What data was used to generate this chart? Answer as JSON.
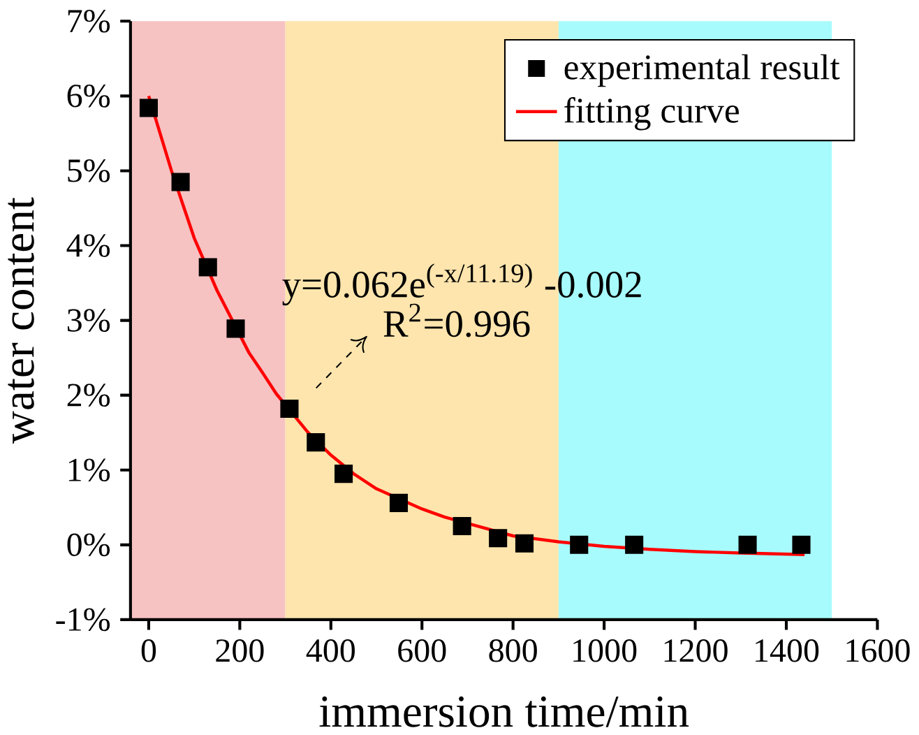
{
  "chart_data": {
    "type": "scatter",
    "xlabel": "immersion time/min",
    "ylabel": "water content",
    "xlim": [
      -40,
      1600
    ],
    "xticks": [
      0,
      200,
      400,
      600,
      800,
      1000,
      1200,
      1400,
      1600
    ],
    "ylim": [
      -1,
      7
    ],
    "yticks": [
      {
        "value": -1,
        "label": "-1%"
      },
      {
        "value": 0,
        "label": "0%"
      },
      {
        "value": 1,
        "label": "1%"
      },
      {
        "value": 2,
        "label": "2%"
      },
      {
        "value": 3,
        "label": "3%"
      },
      {
        "value": 4,
        "label": "4%"
      },
      {
        "value": 5,
        "label": "5%"
      },
      {
        "value": 6,
        "label": "6%"
      },
      {
        "value": 7,
        "label": "7%"
      }
    ],
    "x": [
      0,
      70,
      130,
      191,
      309,
      367,
      428,
      549,
      688,
      767,
      825,
      945,
      1066,
      1315,
      1433
    ],
    "series": [
      {
        "name": "experimental result",
        "color": "#000000",
        "marker": "square",
        "values": [
          5.84,
          4.85,
          3.71,
          2.89,
          1.82,
          1.37,
          0.95,
          0.56,
          0.25,
          0.09,
          0.02,
          0,
          0,
          0,
          0
        ]
      },
      {
        "name": "fitting curve",
        "type": "line",
        "color": "#ff0000",
        "marker": "none",
        "x": [
          0,
          50,
          100,
          150,
          220,
          250,
          280,
          350,
          400,
          450,
          500,
          600,
          650,
          800,
          900,
          1000,
          1100,
          1200,
          1300,
          1440
        ],
        "values": [
          6.0,
          5.0,
          4.1,
          3.4,
          2.57,
          2.3,
          2.02,
          1.5,
          1.2,
          0.95,
          0.75,
          0.48,
          0.37,
          0.12,
          0.04,
          -0.02,
          -0.06,
          -0.09,
          -0.11,
          -0.13
        ]
      }
    ],
    "bands": [
      {
        "axis": "x",
        "from": -40,
        "to": 300,
        "color": "#f7c2c2"
      },
      {
        "axis": "x",
        "from": 300,
        "to": 900,
        "color": "#fde5ad"
      },
      {
        "axis": "x",
        "from": 900,
        "to": 1500,
        "color": "#a8fbfd"
      }
    ],
    "annotations": [
      "y=0.062e$^{(-x/11.19)}$ -0.002",
      "R$^{2}$=0.996"
    ],
    "legend": "top right",
    "grid": false
  }
}
